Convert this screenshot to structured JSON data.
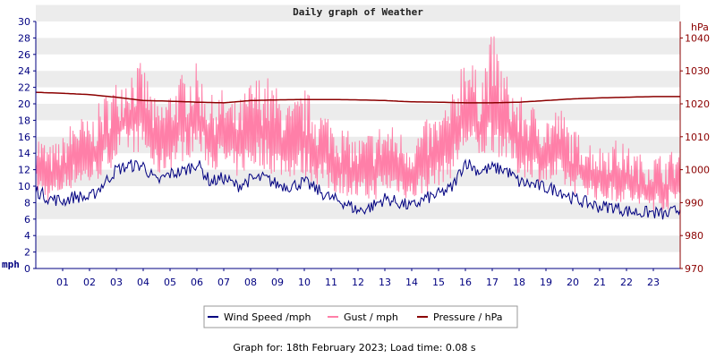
{
  "colors": {
    "wind": "#000080",
    "gust": "#ff7fa8",
    "pressure": "#8b0000",
    "band": "#ececec",
    "axis": "#000080",
    "right_axis": "#8b0000"
  },
  "chart_data": {
    "type": "line",
    "title": "Daily graph of Weather",
    "left_axis": {
      "unit": "mph",
      "ylim": [
        0,
        30
      ],
      "ticks": [
        "0",
        "2",
        "4",
        "6",
        "8",
        "10",
        "12",
        "14",
        "16",
        "18",
        "20",
        "22",
        "24",
        "26",
        "28",
        "30"
      ]
    },
    "right_axis": {
      "unit": "hPa",
      "ylim": [
        970,
        1045
      ],
      "ticks": [
        "970",
        "980",
        "990",
        "1000",
        "1010",
        "1020",
        "1030",
        "1040"
      ]
    },
    "x_axis": {
      "range_hours": [
        0,
        24
      ],
      "tick_labels": [
        "01",
        "02",
        "03",
        "04",
        "05",
        "06",
        "07",
        "08",
        "09",
        "10",
        "11",
        "12",
        "13",
        "14",
        "15",
        "16",
        "17",
        "18",
        "19",
        "20",
        "21",
        "22",
        "23"
      ]
    },
    "grid": "horizontal bands",
    "legend_position": "bottom",
    "series": [
      {
        "name": "Wind Speed /mph",
        "key": "wind",
        "axis": "left",
        "x": [
          0,
          0.5,
          1,
          1.5,
          2,
          2.5,
          3,
          3.5,
          4,
          4.5,
          5,
          5.5,
          6,
          6.5,
          7,
          7.5,
          8,
          8.5,
          9,
          9.5,
          10,
          10.5,
          11,
          11.5,
          12,
          12.5,
          13,
          13.5,
          14,
          14.5,
          15,
          15.5,
          16,
          16.5,
          17,
          17.5,
          18,
          18.5,
          19,
          19.5,
          20,
          20.5,
          21,
          21.5,
          22,
          22.5,
          23,
          23.5,
          24
        ],
        "values": [
          9.5,
          8.5,
          8.2,
          8.8,
          8.5,
          10.2,
          12.0,
          12.5,
          12.5,
          10.5,
          11.5,
          11.8,
          12.8,
          10.5,
          11.0,
          10.0,
          10.8,
          11.0,
          10.2,
          10.0,
          10.5,
          9.5,
          8.5,
          8.0,
          7.0,
          7.5,
          8.5,
          8.0,
          7.5,
          8.5,
          9.0,
          9.8,
          13.0,
          11.8,
          12.2,
          12.0,
          10.5,
          10.2,
          9.8,
          9.5,
          8.5,
          8.0,
          7.5,
          7.5,
          7.0,
          6.8,
          6.8,
          6.5,
          7.3
        ]
      },
      {
        "name": "Gust / mph",
        "key": "gust",
        "axis": "left",
        "x": [
          0,
          0.5,
          1,
          1.5,
          2,
          2.5,
          3,
          3.5,
          4,
          4.5,
          5,
          5.5,
          6,
          6.5,
          7,
          7.5,
          8,
          8.5,
          9,
          9.5,
          10,
          10.5,
          11,
          11.5,
          12,
          12.5,
          13,
          13.5,
          14,
          14.5,
          15,
          15.5,
          16,
          16.5,
          17,
          17.5,
          18,
          18.5,
          19,
          19.5,
          20,
          20.5,
          21,
          21.5,
          22,
          22.5,
          23,
          23.5,
          24
        ],
        "values": [
          17,
          15,
          16,
          19,
          18,
          21,
          23,
          25,
          25,
          20,
          22,
          24,
          25,
          21,
          22,
          20,
          23,
          24,
          22,
          20,
          22,
          20,
          19,
          17,
          16,
          17,
          18,
          17,
          16,
          18,
          19,
          21,
          28,
          23,
          29,
          24,
          21,
          20,
          19,
          20,
          17,
          16,
          15,
          16,
          15,
          14,
          14,
          14,
          15
        ],
        "min_values": [
          9,
          8,
          9,
          10,
          10,
          11,
          13,
          14,
          14,
          11,
          12,
          13,
          14,
          12,
          12,
          11,
          12,
          12,
          11,
          11,
          11,
          10,
          9,
          9,
          8,
          8,
          9,
          9,
          8,
          9,
          10,
          11,
          14,
          13,
          14,
          13,
          11,
          11,
          10,
          10,
          9,
          9,
          8,
          8,
          8,
          7,
          7,
          7,
          8
        ]
      },
      {
        "name": "Pressure / hPa",
        "key": "pressure",
        "axis": "right",
        "x": [
          0,
          1,
          2,
          3,
          4,
          5,
          6,
          7,
          8,
          9,
          10,
          11,
          12,
          13,
          14,
          15,
          16,
          17,
          18,
          19,
          20,
          21,
          22,
          23,
          24
        ],
        "values": [
          1023.5,
          1023.2,
          1022.8,
          1022.0,
          1021.0,
          1020.8,
          1020.5,
          1020.3,
          1021.0,
          1021.2,
          1021.3,
          1021.3,
          1021.2,
          1021.0,
          1020.6,
          1020.5,
          1020.3,
          1020.3,
          1020.5,
          1021.0,
          1021.5,
          1021.8,
          1022.0,
          1022.2,
          1022.2
        ]
      }
    ],
    "legend": [
      {
        "key": "wind",
        "label": "Wind Speed /mph"
      },
      {
        "key": "gust",
        "label": "Gust / mph"
      },
      {
        "key": "pressure",
        "label": "Pressure / hPa"
      }
    ]
  },
  "footer": "Graph for: 18th February 2023; Load time: 0.08 s"
}
